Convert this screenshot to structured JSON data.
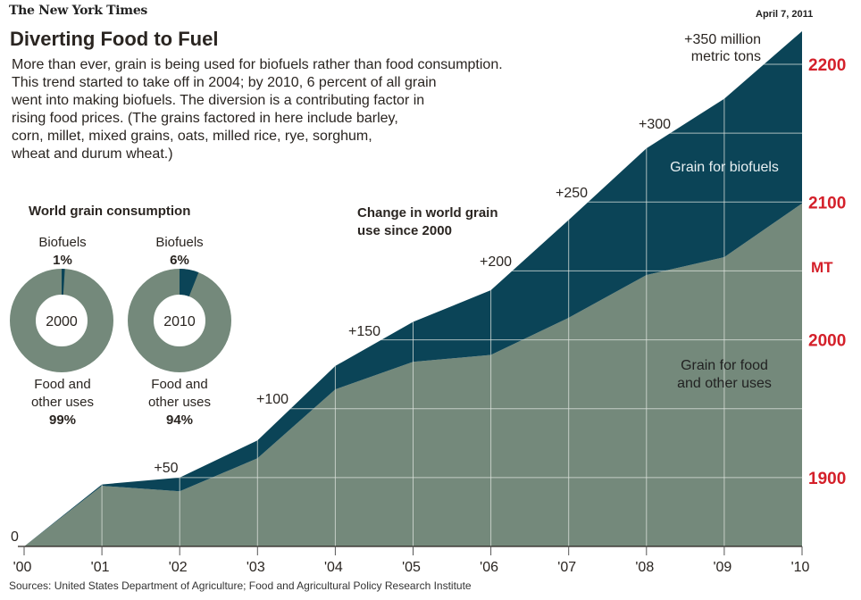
{
  "header": {
    "publication": "The New York Times",
    "date": "April 7, 2011",
    "title": "Diverting Food to Fuel",
    "intro_lines": [
      "More than ever, grain is being used for biofuels rather than food consumption.",
      "This trend started to take off in 2004; by 2010, 6 percent of all grain",
      "went into making biofuels. The diversion is a contributing factor in",
      "rising food prices. (The grains factored in here include barley,",
      "corn, millet, mixed grains, oats, milled rice, rye, sorghum,",
      "wheat and durum wheat.)"
    ]
  },
  "colors": {
    "biofuels": "#0b4457",
    "food": "#74897b",
    "annotation_red": "#d4202a",
    "gridline": "#dfe5df"
  },
  "donuts": {
    "title": "World grain consumption",
    "items": [
      {
        "year": "2000",
        "top_label": "Biofuels",
        "top_value": "1%",
        "bottom_label_1": "Food and",
        "bottom_label_2": "other uses",
        "bottom_value": "99%",
        "biofuel_pct": 1
      },
      {
        "year": "2010",
        "top_label": "Biofuels",
        "top_value": "6%",
        "bottom_label_1": "Food and",
        "bottom_label_2": "other uses",
        "bottom_value": "94%",
        "biofuel_pct": 6
      }
    ]
  },
  "chart_data": {
    "type": "area",
    "title": "Change in world grain use since 2000",
    "title_lines": [
      "Change in world grain",
      "use since 2000"
    ],
    "x": [
      "'00",
      "'01",
      "'02",
      "'03",
      "'04",
      "'05",
      "'06",
      "'07",
      "'08",
      "'09",
      "'10"
    ],
    "series": [
      {
        "name": "Grain for food and other uses",
        "label_lines": [
          "Grain for food",
          "and other uses"
        ],
        "values": [
          0,
          44,
          40,
          64,
          114,
          134,
          139,
          166,
          197,
          210,
          249
        ]
      },
      {
        "name": "Grain for biofuels",
        "label_lines": [
          "Grain for biofuels"
        ],
        "values": [
          0,
          1,
          10,
          13,
          17,
          29,
          47,
          71,
          92,
          115,
          125
        ]
      }
    ],
    "totals": [
      0,
      45,
      50,
      77,
      131,
      163,
      186,
      237,
      289,
      325,
      374
    ],
    "stacked": true,
    "ylim": [
      0,
      375
    ],
    "grid_step": 50,
    "grid": true,
    "annotations": [
      {
        "text": "0",
        "at_x": "'00",
        "value": 0
      },
      {
        "text": "+50",
        "at_x": "'02",
        "value": 50
      },
      {
        "text": "+100",
        "at_x": "'03",
        "value": 100
      },
      {
        "text": "+150",
        "at_x": "'05",
        "value": 150
      },
      {
        "text": "+200",
        "at_x": "'06",
        "value": 200
      },
      {
        "text": "+250",
        "at_x": "'07",
        "value": 250
      },
      {
        "text": "+300",
        "at_x": "'08",
        "value": 300
      },
      {
        "text": "+350 million",
        "text2": "metric tons",
        "at_x": "'10",
        "value": 350
      }
    ],
    "right_axis": {
      "unit_label": "MT",
      "ticks": [
        {
          "label": "2200",
          "value": 350
        },
        {
          "label": "2100",
          "value": 250
        },
        {
          "label": "2000",
          "value": 150
        },
        {
          "label": "1900",
          "value": 50
        }
      ]
    },
    "xlabel": "",
    "ylabel": "million metric tons"
  },
  "footer": {
    "sources": "Sources: United States Department of Agriculture; Food and Agricultural Policy Research Institute"
  }
}
